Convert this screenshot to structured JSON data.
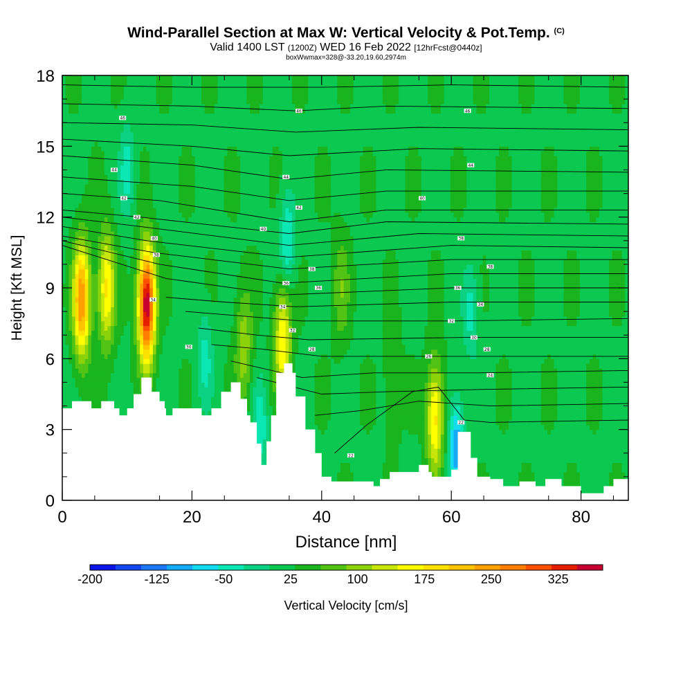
{
  "header": {
    "title": "Wind-Parallel Section at Max W: Vertical Velocity & Pot.Temp.",
    "copyright": "(C)",
    "valid_prefix": "Valid 1400 LST",
    "valid_utc": "(1200Z)",
    "valid_date": "WED 16 Feb 2022",
    "forecast_info": "[12hrFcst@0440z]",
    "box_info": "boxWwmax=328@-33.20,19.60,2974m"
  },
  "chart_data": {
    "type": "heatmap",
    "title": "Wind-Parallel Section at Max W: Vertical Velocity & Pot.Temp.",
    "xlabel": "Distance [nm]",
    "ylabel": "Height [Kft MSL]",
    "xlim": [
      0,
      87.3
    ],
    "ylim": [
      0,
      18
    ],
    "xticks": [
      0,
      20,
      40,
      60,
      80
    ],
    "yticks": [
      0,
      3,
      6,
      9,
      12,
      15,
      18
    ],
    "colorbar": {
      "label": "Vertical Velocity [cm/s]",
      "ticks": [
        -200,
        -125,
        -50,
        25,
        100,
        175,
        250,
        325
      ],
      "min": -200,
      "max": 375,
      "colors": [
        "#0a14e6",
        "#1446f0",
        "#1e78f5",
        "#14aaf5",
        "#14dcf0",
        "#0ae6b4",
        "#0ad282",
        "#0ac850",
        "#19b41e",
        "#50c314",
        "#8cd20a",
        "#c8e60a",
        "#ffff00",
        "#ffe100",
        "#ffc300",
        "#ffa000",
        "#ff7d00",
        "#fa5000",
        "#e61e00",
        "#c80032"
      ]
    },
    "background_w": 25,
    "updraft_cores": [
      {
        "x": 3.0,
        "z": 8.5,
        "w": 260
      },
      {
        "x": 6.8,
        "z": 9.0,
        "w": 180
      },
      {
        "x": 13.0,
        "z": 8.3,
        "w": 375
      },
      {
        "x": 34.0,
        "z": 6.8,
        "w": 175
      },
      {
        "x": 57.5,
        "z": 3.5,
        "w": 185
      },
      {
        "x": 28.0,
        "z": 6.5,
        "w": 110
      },
      {
        "x": 43.0,
        "z": 9.0,
        "w": 80
      },
      {
        "x": 51.0,
        "z": 5.0,
        "w": 60
      }
    ],
    "downdraft_cores": [
      {
        "x": 60.8,
        "z": 2.3,
        "w": -110
      },
      {
        "x": 34.7,
        "z": 11.0,
        "w": -60
      },
      {
        "x": 30.5,
        "z": 3.0,
        "w": -50
      },
      {
        "x": 10.0,
        "z": 14.0,
        "w": -40
      },
      {
        "x": 22.0,
        "z": 6.0,
        "w": -40
      },
      {
        "x": 63.0,
        "z": 8.0,
        "w": -40
      }
    ],
    "terrain": [
      {
        "x": 0.0,
        "z": 3.9
      },
      {
        "x": 1.5,
        "z": 4.2
      },
      {
        "x": 4.5,
        "z": 3.9
      },
      {
        "x": 6.0,
        "z": 4.2
      },
      {
        "x": 8.0,
        "z": 3.9
      },
      {
        "x": 8.8,
        "z": 3.6
      },
      {
        "x": 10.0,
        "z": 3.9
      },
      {
        "x": 11.0,
        "z": 4.5
      },
      {
        "x": 12.2,
        "z": 5.2
      },
      {
        "x": 13.8,
        "z": 4.6
      },
      {
        "x": 15.0,
        "z": 4.2
      },
      {
        "x": 15.8,
        "z": 3.9
      },
      {
        "x": 16.0,
        "z": 3.6
      },
      {
        "x": 17.0,
        "z": 3.9
      },
      {
        "x": 20.5,
        "z": 3.9
      },
      {
        "x": 21.5,
        "z": 3.6
      },
      {
        "x": 23.0,
        "z": 3.9
      },
      {
        "x": 24.5,
        "z": 4.6
      },
      {
        "x": 26.0,
        "z": 5.0
      },
      {
        "x": 27.5,
        "z": 4.3
      },
      {
        "x": 28.5,
        "z": 3.6
      },
      {
        "x": 29.0,
        "z": 3.3
      },
      {
        "x": 30.0,
        "z": 2.4
      },
      {
        "x": 30.7,
        "z": 1.5
      },
      {
        "x": 31.5,
        "z": 2.5
      },
      {
        "x": 32.2,
        "z": 3.6
      },
      {
        "x": 33.0,
        "z": 5.4
      },
      {
        "x": 34.2,
        "z": 5.8
      },
      {
        "x": 35.5,
        "z": 5.4
      },
      {
        "x": 36.0,
        "z": 4.4
      },
      {
        "x": 37.5,
        "z": 3.0
      },
      {
        "x": 39.0,
        "z": 2.0
      },
      {
        "x": 40.0,
        "z": 1.0
      },
      {
        "x": 41.5,
        "z": 0.8
      },
      {
        "x": 47.0,
        "z": 0.8
      },
      {
        "x": 48.0,
        "z": 0.6
      },
      {
        "x": 49.0,
        "z": 0.9
      },
      {
        "x": 50.5,
        "z": 1.2
      },
      {
        "x": 54.0,
        "z": 1.2
      },
      {
        "x": 55.0,
        "z": 1.5
      },
      {
        "x": 56.5,
        "z": 1.2
      },
      {
        "x": 57.0,
        "z": 1.0
      },
      {
        "x": 60.0,
        "z": 1.3
      },
      {
        "x": 61.0,
        "z": 2.9
      },
      {
        "x": 62.5,
        "z": 2.9
      },
      {
        "x": 63.0,
        "z": 1.8
      },
      {
        "x": 64.0,
        "z": 1.0
      },
      {
        "x": 66.0,
        "z": 0.9
      },
      {
        "x": 68.0,
        "z": 0.6
      },
      {
        "x": 70.5,
        "z": 0.8
      },
      {
        "x": 73.0,
        "z": 0.6
      },
      {
        "x": 74.5,
        "z": 0.9
      },
      {
        "x": 77.0,
        "z": 0.6
      },
      {
        "x": 79.5,
        "z": 0.6
      },
      {
        "x": 80.0,
        "z": 0.3
      },
      {
        "x": 83.5,
        "z": 0.6
      },
      {
        "x": 85.0,
        "z": 0.9
      },
      {
        "x": 87.3,
        "z": 1.0
      }
    ],
    "theta_contours": [
      {
        "levels": [
          {
            "x": 0,
            "z": 17.6
          },
          {
            "x": 20,
            "z": 17.5
          },
          {
            "x": 40,
            "z": 17.5
          },
          {
            "x": 60,
            "z": 17.6
          },
          {
            "x": 87.3,
            "z": 17.5
          }
        ]
      },
      {
        "levels": [
          {
            "x": 0,
            "z": 16.8
          },
          {
            "x": 20,
            "z": 16.7
          },
          {
            "x": 36,
            "z": 16.5
          },
          {
            "x": 50,
            "z": 16.7
          },
          {
            "x": 87.3,
            "z": 16.6
          }
        ]
      },
      {
        "levels": [
          {
            "x": 0,
            "z": 16.0
          },
          {
            "x": 20,
            "z": 15.9
          },
          {
            "x": 36,
            "z": 15.6
          },
          {
            "x": 55,
            "z": 15.8
          },
          {
            "x": 87.3,
            "z": 15.7
          }
        ]
      },
      {
        "levels": [
          {
            "x": 0,
            "z": 15.3
          },
          {
            "x": 20,
            "z": 15.0
          },
          {
            "x": 35,
            "z": 14.6
          },
          {
            "x": 55,
            "z": 14.9
          },
          {
            "x": 87.3,
            "z": 14.8
          }
        ]
      },
      {
        "levels": [
          {
            "x": 0,
            "z": 14.6
          },
          {
            "x": 20,
            "z": 14.2
          },
          {
            "x": 35,
            "z": 13.6
          },
          {
            "x": 50,
            "z": 14.0
          },
          {
            "x": 87.3,
            "z": 13.9
          }
        ]
      },
      {
        "levels": [
          {
            "x": 0,
            "z": 13.7
          },
          {
            "x": 20,
            "z": 13.3
          },
          {
            "x": 35,
            "z": 12.7
          },
          {
            "x": 50,
            "z": 13.1
          },
          {
            "x": 87.3,
            "z": 13.1
          }
        ]
      },
      {
        "levels": [
          {
            "x": 0,
            "z": 13.0
          },
          {
            "x": 15,
            "z": 12.7
          },
          {
            "x": 35,
            "z": 11.8
          },
          {
            "x": 50,
            "z": 12.3
          },
          {
            "x": 87.3,
            "z": 12.3
          }
        ]
      },
      {
        "levels": [
          {
            "x": 0,
            "z": 12.3
          },
          {
            "x": 12,
            "z": 12.0
          },
          {
            "x": 35,
            "z": 11.3
          },
          {
            "x": 50,
            "z": 11.8
          },
          {
            "x": 87.3,
            "z": 11.7
          }
        ]
      },
      {
        "levels": [
          {
            "x": 0,
            "z": 12.0
          },
          {
            "x": 12,
            "z": 11.6
          },
          {
            "x": 35,
            "z": 10.8
          },
          {
            "x": 55,
            "z": 11.3
          },
          {
            "x": 87.3,
            "z": 11.2
          }
        ]
      },
      {
        "levels": [
          {
            "x": 0,
            "z": 11.6
          },
          {
            "x": 13,
            "z": 11.0
          },
          {
            "x": 35,
            "z": 10.3
          },
          {
            "x": 60,
            "z": 10.8
          },
          {
            "x": 87.3,
            "z": 10.7
          }
        ]
      },
      {
        "levels": [
          {
            "x": 0,
            "z": 11.2
          },
          {
            "x": 14,
            "z": 10.5
          },
          {
            "x": 35,
            "z": 9.8
          },
          {
            "x": 60,
            "z": 10.2
          },
          {
            "x": 87.3,
            "z": 10.2
          }
        ]
      },
      {
        "levels": [
          {
            "x": 0,
            "z": 11.0
          },
          {
            "x": 15,
            "z": 10.0
          },
          {
            "x": 34,
            "z": 9.2
          },
          {
            "x": 60,
            "z": 9.6
          },
          {
            "x": 87.3,
            "z": 9.6
          }
        ]
      },
      {
        "levels": [
          {
            "x": 0,
            "z": 10.8
          },
          {
            "x": 16,
            "z": 9.4
          },
          {
            "x": 34,
            "z": 8.7
          },
          {
            "x": 60,
            "z": 9.0
          },
          {
            "x": 87.3,
            "z": 9.0
          }
        ]
      },
      {
        "levels": [
          {
            "x": 16,
            "z": 8.6
          },
          {
            "x": 25,
            "z": 8.4
          },
          {
            "x": 36,
            "z": 8.2
          },
          {
            "x": 60,
            "z": 8.4
          },
          {
            "x": 87.3,
            "z": 8.4
          }
        ]
      },
      {
        "levels": [
          {
            "x": 19,
            "z": 8.0
          },
          {
            "x": 28,
            "z": 7.8
          },
          {
            "x": 37,
            "z": 7.6
          },
          {
            "x": 60,
            "z": 7.6
          },
          {
            "x": 87.3,
            "z": 7.7
          }
        ]
      },
      {
        "levels": [
          {
            "x": 21,
            "z": 7.3
          },
          {
            "x": 30,
            "z": 7.0
          },
          {
            "x": 38,
            "z": 6.8
          },
          {
            "x": 62,
            "z": 6.9
          },
          {
            "x": 87.3,
            "z": 6.9
          }
        ]
      },
      {
        "levels": [
          {
            "x": 23,
            "z": 6.6
          },
          {
            "x": 31,
            "z": 6.4
          },
          {
            "x": 40,
            "z": 6.1
          },
          {
            "x": 62,
            "z": 6.1
          },
          {
            "x": 87.3,
            "z": 6.1
          }
        ]
      },
      {
        "levels": [
          {
            "x": 26,
            "z": 5.9
          },
          {
            "x": 37,
            "z": 5.2
          },
          {
            "x": 48,
            "z": 5.4
          },
          {
            "x": 64,
            "z": 5.4
          },
          {
            "x": 87.3,
            "z": 5.5
          }
        ]
      },
      {
        "levels": [
          {
            "x": 30,
            "z": 5.2
          },
          {
            "x": 40,
            "z": 4.5
          },
          {
            "x": 50,
            "z": 4.6
          },
          {
            "x": 65,
            "z": 4.7
          },
          {
            "x": 87.3,
            "z": 4.8
          }
        ]
      },
      {
        "levels": [
          {
            "x": 39,
            "z": 3.6
          },
          {
            "x": 46,
            "z": 3.8
          },
          {
            "x": 55,
            "z": 4.2
          },
          {
            "x": 66,
            "z": 4.0
          },
          {
            "x": 87.3,
            "z": 4.1
          }
        ]
      },
      {
        "levels": [
          {
            "x": 42,
            "z": 2.0
          },
          {
            "x": 47,
            "z": 3.2
          },
          {
            "x": 54,
            "z": 4.6
          },
          {
            "x": 58,
            "z": 4.8
          },
          {
            "x": 62,
            "z": 3.4
          },
          {
            "x": 66,
            "z": 3.3
          },
          {
            "x": 87.3,
            "z": 3.4
          }
        ]
      }
    ],
    "contour_labels": [
      {
        "x": 9.3,
        "z": 16.2,
        "text": "46"
      },
      {
        "x": 36.5,
        "z": 16.5,
        "text": "46"
      },
      {
        "x": 62.5,
        "z": 16.5,
        "text": "46"
      },
      {
        "x": 8.0,
        "z": 14.0,
        "text": "44"
      },
      {
        "x": 34.5,
        "z": 13.7,
        "text": "44"
      },
      {
        "x": 63.0,
        "z": 14.2,
        "text": "44"
      },
      {
        "x": 9.5,
        "z": 12.8,
        "text": "42"
      },
      {
        "x": 11.5,
        "z": 12.0,
        "text": "42"
      },
      {
        "x": 36.5,
        "z": 12.4,
        "text": "42"
      },
      {
        "x": 55.5,
        "z": 12.8,
        "text": "40"
      },
      {
        "x": 31.0,
        "z": 11.5,
        "text": "40"
      },
      {
        "x": 61.5,
        "z": 11.1,
        "text": "38"
      },
      {
        "x": 14.2,
        "z": 11.1,
        "text": "40"
      },
      {
        "x": 14.5,
        "z": 10.4,
        "text": "38"
      },
      {
        "x": 38.5,
        "z": 9.8,
        "text": "38"
      },
      {
        "x": 66.0,
        "z": 9.9,
        "text": "38"
      },
      {
        "x": 34.5,
        "z": 9.2,
        "text": "36"
      },
      {
        "x": 39.5,
        "z": 9.0,
        "text": "36"
      },
      {
        "x": 61.0,
        "z": 9.0,
        "text": "36"
      },
      {
        "x": 14.0,
        "z": 8.5,
        "text": "34"
      },
      {
        "x": 34.0,
        "z": 8.2,
        "text": "34"
      },
      {
        "x": 64.5,
        "z": 8.3,
        "text": "34"
      },
      {
        "x": 60.0,
        "z": 7.6,
        "text": "32"
      },
      {
        "x": 35.5,
        "z": 7.2,
        "text": "32"
      },
      {
        "x": 63.5,
        "z": 6.9,
        "text": "30"
      },
      {
        "x": 19.5,
        "z": 6.5,
        "text": "30"
      },
      {
        "x": 38.5,
        "z": 6.4,
        "text": "28"
      },
      {
        "x": 65.5,
        "z": 6.4,
        "text": "28"
      },
      {
        "x": 56.5,
        "z": 6.1,
        "text": "26"
      },
      {
        "x": 66.0,
        "z": 5.3,
        "text": "24"
      },
      {
        "x": 44.5,
        "z": 1.9,
        "text": "22"
      },
      {
        "x": 61.5,
        "z": 3.3,
        "text": "22"
      }
    ]
  }
}
